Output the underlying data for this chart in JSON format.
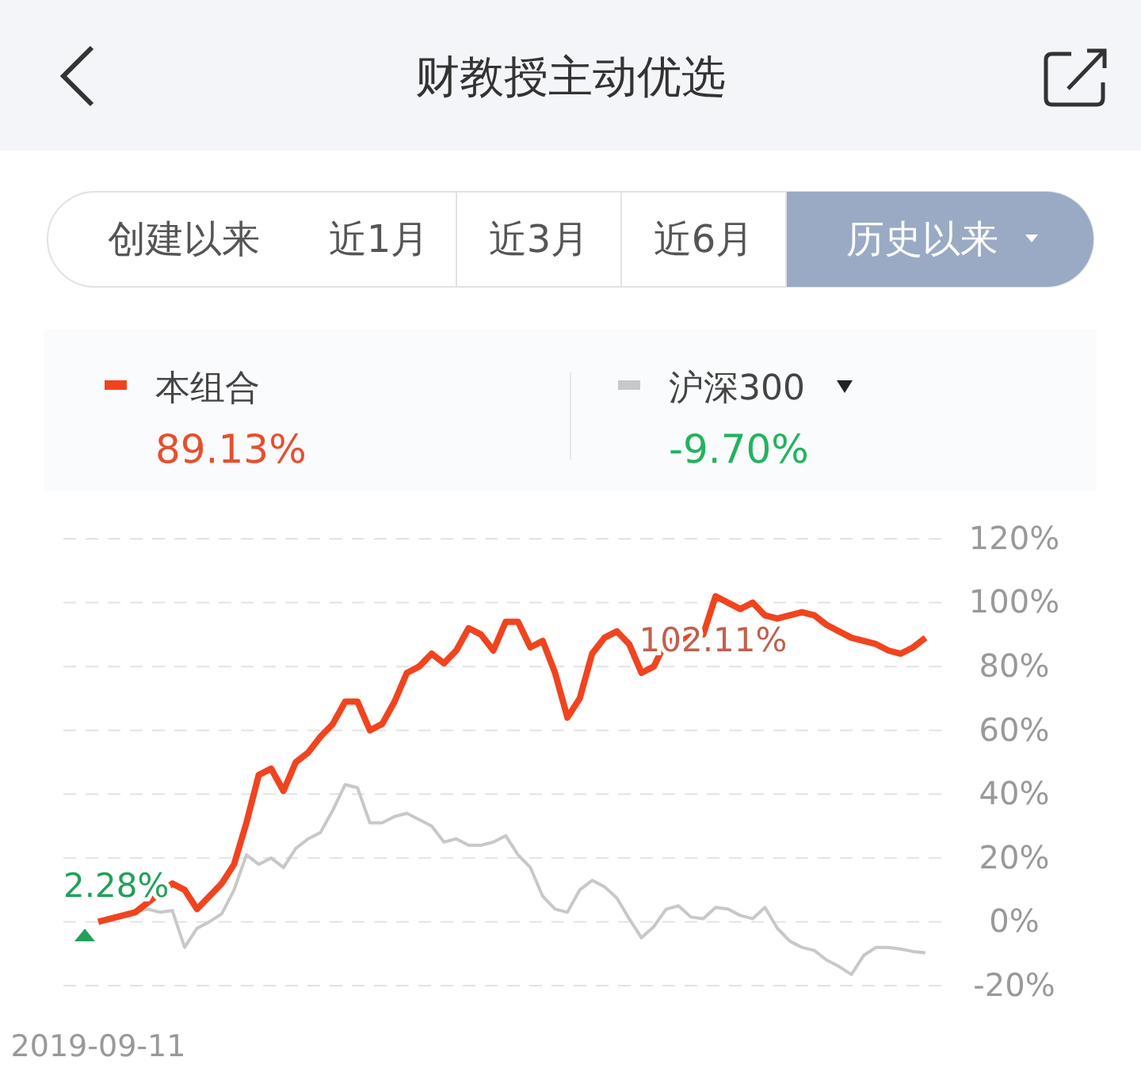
{
  "chart_data": {
    "type": "line",
    "title": "财教授主动优选",
    "annotations": [
      "创建以来",
      "近1月",
      "近3月",
      "近6月",
      "历史以来",
      "89.13%",
      "-9.70%",
      "2.28%",
      "102.11%"
    ],
    "categories": [
      "2019-09-11",
      null,
      null,
      null,
      null,
      null,
      null,
      null,
      null,
      null,
      null,
      null,
      null,
      null,
      null,
      null,
      null,
      null,
      null,
      null,
      null,
      null,
      null,
      null,
      null,
      null,
      null,
      null,
      null,
      null,
      null,
      null,
      null,
      null,
      null,
      null,
      null,
      null,
      null,
      null,
      null,
      null,
      null,
      null,
      null,
      null,
      null,
      null,
      null,
      null,
      null,
      null,
      null,
      null,
      null,
      null,
      null,
      null,
      null,
      null,
      null,
      null,
      null,
      null,
      null,
      null,
      null,
      null
    ],
    "series": [
      {
        "name": "本组合",
        "color": "#f0441f",
        "values": [
          0,
          1,
          2,
          3,
          6,
          9,
          12,
          10,
          4,
          8,
          12,
          18,
          31,
          46,
          48,
          41,
          50,
          53,
          58,
          62,
          69,
          69,
          60,
          62,
          69,
          78,
          80,
          84,
          81,
          85,
          92,
          90,
          85,
          94,
          94,
          86,
          88,
          78,
          64,
          70,
          84,
          89,
          91,
          87,
          78,
          80,
          88,
          88,
          90,
          90,
          102,
          100,
          98,
          100,
          96,
          95,
          96,
          97,
          96,
          93,
          91,
          89,
          88,
          87,
          85,
          84,
          86,
          89
        ]
      },
      {
        "name": "沪深300",
        "color": "#c8c8c8",
        "values": [
          0,
          1,
          2,
          3,
          4,
          3,
          3.5,
          -8,
          -2,
          0,
          2.5,
          10,
          21,
          18,
          20,
          17,
          23,
          26,
          28,
          35,
          43,
          42,
          31,
          31,
          33,
          34,
          32,
          30,
          25,
          26,
          24,
          24,
          25,
          27,
          21,
          17,
          8,
          4,
          3,
          10,
          13,
          11,
          7.5,
          1,
          -5,
          -1.5,
          4,
          5,
          1.5,
          1,
          4.5,
          4,
          2,
          1,
          4.5,
          -2,
          -6,
          -8,
          -9,
          -12,
          -14,
          -16.5,
          -10.5,
          -8,
          -8,
          -8.5,
          -9.3,
          -9.7
        ]
      }
    ],
    "ylim": [
      -20,
      120
    ],
    "yticks": [
      {
        "value": -20,
        "label": "-20%"
      },
      {
        "value": 0,
        "label": "0%"
      },
      {
        "value": 20,
        "label": "20%"
      },
      {
        "value": 40,
        "label": "40%"
      },
      {
        "value": 60,
        "label": "60%"
      },
      {
        "value": 80,
        "label": "80%"
      },
      {
        "value": 100,
        "label": "100%"
      },
      {
        "value": 120,
        "label": "120%"
      }
    ],
    "grid": "y",
    "legend": "top left",
    "line_style": "solid"
  }
}
